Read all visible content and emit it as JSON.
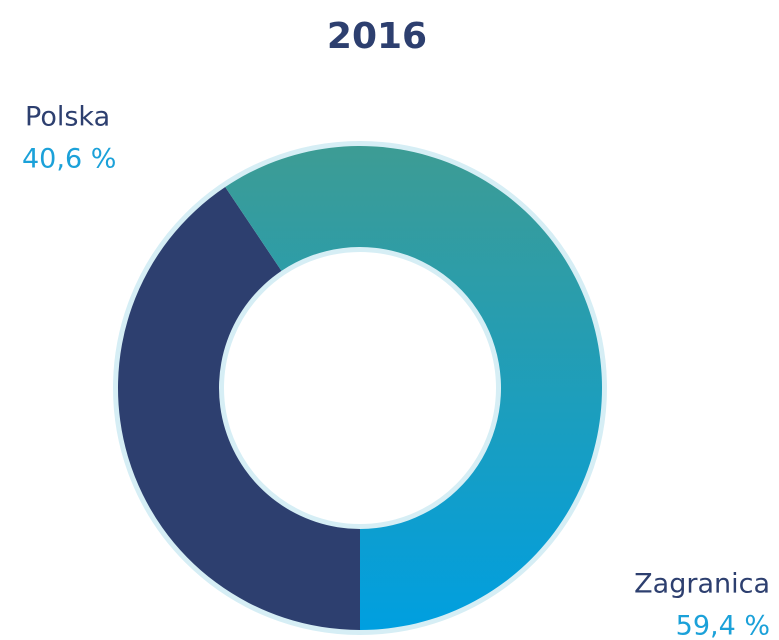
{
  "chart_data": {
    "type": "donut",
    "title": "2016",
    "categories": [
      "Polska",
      "Zagranica"
    ],
    "values": [
      40.6,
      59.4
    ],
    "value_labels": [
      "40,6 %",
      "59,4 %"
    ],
    "colors": [
      "#2d3f6f",
      [
        "#3d9c94",
        "#009fe0"
      ]
    ]
  }
}
